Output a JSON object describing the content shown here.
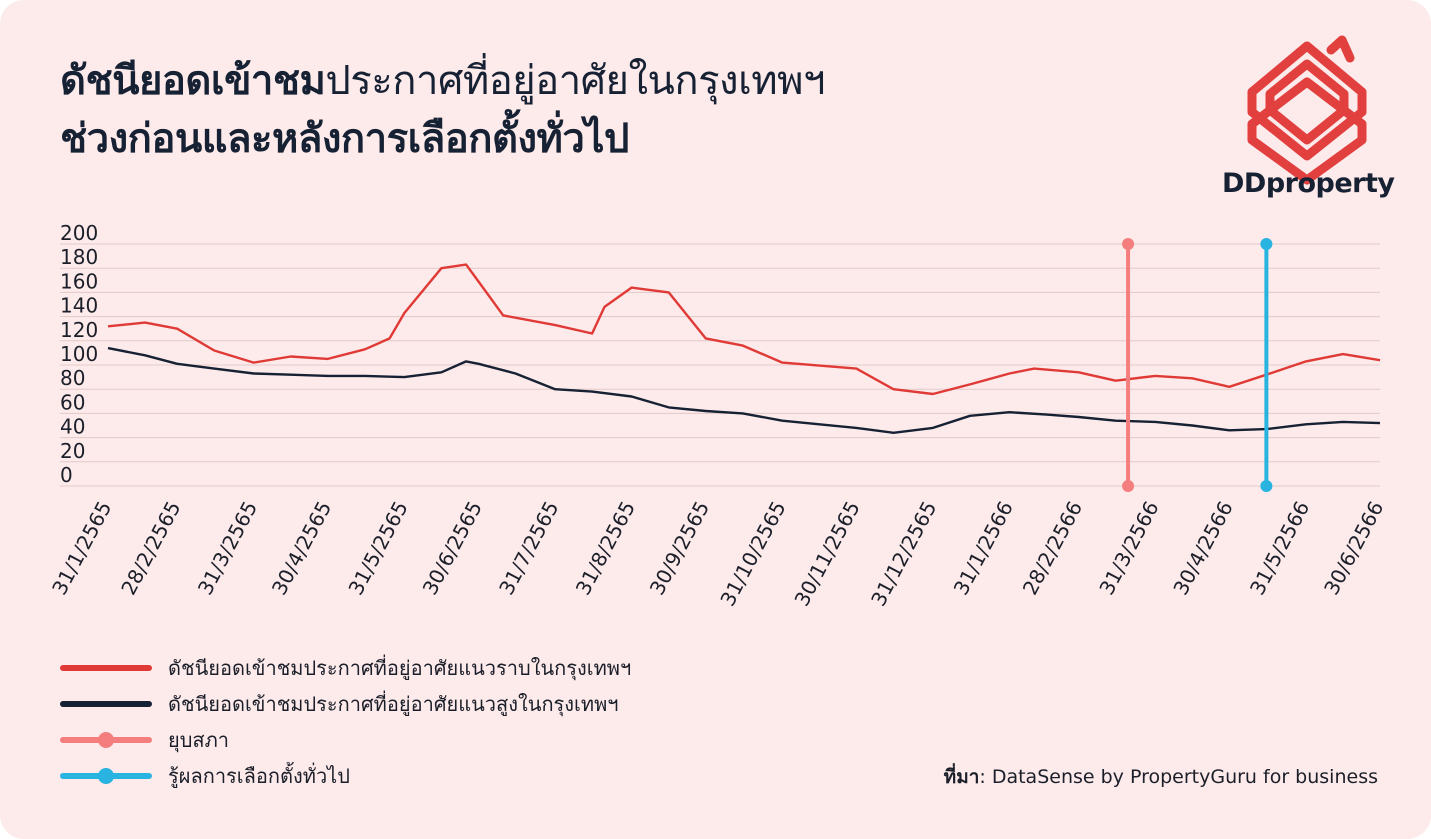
{
  "title": {
    "line1_bold": "ดัชนียอดเข้าชม",
    "line1_regular": "ประกาศที่อยู่อาศัยในกรุงเทพฯ",
    "line2": "ช่วงก่อนและหลังการเลือกตั้งทั่วไป"
  },
  "brand": {
    "name": "DDproperty",
    "color": "#e2403f"
  },
  "source": {
    "label": "ที่มา",
    "text": ": DataSense by PropertyGuru for business"
  },
  "colors": {
    "low_rise": "#e03a36",
    "high_rise": "#162134",
    "dissolution": "#f47e7d",
    "election": "#28b3e0"
  },
  "chart_data": {
    "type": "line",
    "ylim": [
      0,
      200
    ],
    "y_ticks": [
      "0",
      "20",
      "40",
      "60",
      "80",
      "100",
      "120",
      "140",
      "160",
      "180",
      "200"
    ],
    "x_tick_labels": [
      "31/1/2565",
      "28/2/2565",
      "31/3/2565",
      "30/4/2565",
      "31/5/2565",
      "30/6/2565",
      "31/7/2565",
      "31/8/2565",
      "30/9/2565",
      "31/10/2565",
      "30/11/2565",
      "31/12/2565",
      "31/1/2566",
      "28/2/2566",
      "31/3/2566",
      "30/4/2566",
      "31/5/2566",
      "30/6/2566"
    ],
    "legend_position": "bottom-left",
    "grid": true,
    "series": [
      {
        "name": "ดัชนียอดเข้าชมประกาศที่อยู่อาศัยแนวราบในกรุงเทพฯ",
        "color": "#e03a36",
        "points": [
          [
            "31/1/2565",
            132
          ],
          [
            "15/2/2565",
            135
          ],
          [
            "28/2/2565",
            130
          ],
          [
            "15/3/2565",
            112
          ],
          [
            "31/3/2565",
            102
          ],
          [
            "15/4/2565",
            107
          ],
          [
            "30/4/2565",
            105
          ],
          [
            "15/5/2565",
            113
          ],
          [
            "25/5/2565",
            122
          ],
          [
            "31/5/2565",
            143
          ],
          [
            "15/6/2565",
            180
          ],
          [
            "25/6/2565",
            183
          ],
          [
            "30/6/2565",
            169
          ],
          [
            "10/7/2565",
            141
          ],
          [
            "31/7/2565",
            133
          ],
          [
            "15/8/2565",
            126
          ],
          [
            "20/8/2565",
            148
          ],
          [
            "31/8/2565",
            164
          ],
          [
            "15/9/2565",
            160
          ],
          [
            "30/9/2565",
            122
          ],
          [
            "15/10/2565",
            116
          ],
          [
            "31/10/2565",
            102
          ],
          [
            "30/11/2565",
            97
          ],
          [
            "15/12/2565",
            80
          ],
          [
            "31/12/2565",
            76
          ],
          [
            "15/1/2566",
            84
          ],
          [
            "31/1/2566",
            93
          ],
          [
            "10/2/2566",
            97
          ],
          [
            "28/2/2566",
            94
          ],
          [
            "15/3/2566",
            87
          ],
          [
            "31/3/2566",
            91
          ],
          [
            "15/4/2566",
            89
          ],
          [
            "30/4/2566",
            82
          ],
          [
            "15/5/2566",
            92
          ],
          [
            "31/5/2566",
            103
          ],
          [
            "15/6/2566",
            109
          ],
          [
            "30/6/2566",
            104
          ]
        ]
      },
      {
        "name": "ดัชนียอดเข้าชมประกาศที่อยู่อาศัยแนวสูงในกรุงเทพฯ",
        "color": "#162134",
        "points": [
          [
            "31/1/2565",
            114
          ],
          [
            "15/2/2565",
            108
          ],
          [
            "28/2/2565",
            101
          ],
          [
            "15/3/2565",
            97
          ],
          [
            "31/3/2565",
            93
          ],
          [
            "15/4/2565",
            92
          ],
          [
            "30/4/2565",
            91
          ],
          [
            "15/5/2565",
            91
          ],
          [
            "31/5/2565",
            90
          ],
          [
            "15/6/2565",
            94
          ],
          [
            "25/6/2565",
            103
          ],
          [
            "30/6/2565",
            101
          ],
          [
            "15/7/2565",
            93
          ],
          [
            "31/7/2565",
            80
          ],
          [
            "15/8/2565",
            78
          ],
          [
            "31/8/2565",
            74
          ],
          [
            "15/9/2565",
            65
          ],
          [
            "30/9/2565",
            62
          ],
          [
            "15/10/2565",
            60
          ],
          [
            "31/10/2565",
            54
          ],
          [
            "15/11/2565",
            51
          ],
          [
            "30/11/2565",
            48
          ],
          [
            "15/12/2565",
            44
          ],
          [
            "31/12/2565",
            48
          ],
          [
            "15/1/2566",
            58
          ],
          [
            "31/1/2566",
            61
          ],
          [
            "15/2/2566",
            59
          ],
          [
            "28/2/2566",
            57
          ],
          [
            "15/3/2566",
            54
          ],
          [
            "31/3/2566",
            53
          ],
          [
            "15/4/2566",
            50
          ],
          [
            "30/4/2566",
            46
          ],
          [
            "15/5/2566",
            47
          ],
          [
            "31/5/2566",
            51
          ],
          [
            "15/6/2566",
            53
          ],
          [
            "30/6/2566",
            52
          ]
        ]
      }
    ],
    "markers": [
      {
        "name": "ยุบสภา",
        "color": "#f47e7d",
        "x": "20/3/2566",
        "y_range": [
          0,
          200
        ]
      },
      {
        "name": "รู้ผลการเลือกตั้งทั่วไป",
        "color": "#28b3e0",
        "x": "15/5/2566",
        "y_range": [
          0,
          200
        ]
      }
    ]
  },
  "legend": [
    {
      "label": "ดัชนียอดเข้าชมประกาศที่อยู่อาศัยแนวราบในกรุงเทพฯ",
      "color": "#e03a36",
      "marker": false
    },
    {
      "label": "ดัชนียอดเข้าชมประกาศที่อยู่อาศัยแนวสูงในกรุงเทพฯ",
      "color": "#162134",
      "marker": false
    },
    {
      "label": "ยุบสภา",
      "color": "#f47e7d",
      "marker": true
    },
    {
      "label": "รู้ผลการเลือกตั้งทั่วไป",
      "color": "#28b3e0",
      "marker": true
    }
  ]
}
